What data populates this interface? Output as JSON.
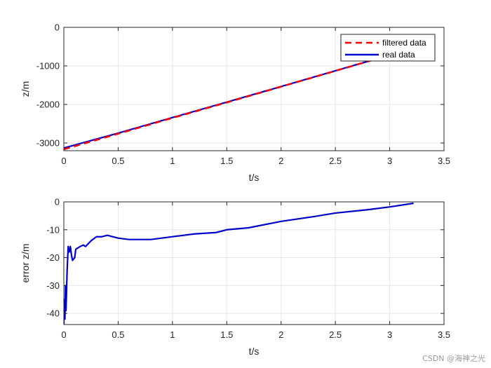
{
  "watermark": "CSDN @海神之光",
  "chart_data": [
    {
      "type": "line",
      "xlabel": "t/s",
      "ylabel": "z/m",
      "xlim": [
        0,
        3.5
      ],
      "ylim": [
        -3200,
        0
      ],
      "xticks": [
        "0",
        "0.5",
        "1",
        "1.5",
        "2",
        "2.5",
        "3",
        "3.5"
      ],
      "yticks": [
        "0",
        "-1000",
        "-2000",
        "-3000"
      ],
      "grid": true,
      "legend": "top-right",
      "series": [
        {
          "name": "filtered data",
          "color": "#ff0000",
          "style": "dashed",
          "x": [
            0,
            0.5,
            1.0,
            1.5,
            2.0,
            2.5,
            3.0,
            3.22
          ],
          "y": [
            -3165,
            -2760,
            -2350,
            -1950,
            -1540,
            -1130,
            -720,
            -540
          ]
        },
        {
          "name": "real data",
          "color": "#0000cc",
          "style": "solid",
          "x": [
            0,
            0.5,
            1.0,
            1.5,
            2.0,
            2.5,
            3.0,
            3.22
          ],
          "y": [
            -3130,
            -2745,
            -2340,
            -1940,
            -1535,
            -1127,
            -719,
            -540
          ]
        }
      ]
    },
    {
      "type": "line",
      "xlabel": "t/s",
      "ylabel": "error z/m",
      "xlim": [
        0,
        3.5
      ],
      "ylim": [
        -44,
        0
      ],
      "xticks": [
        "0",
        "0.5",
        "1",
        "1.5",
        "2",
        "2.5",
        "3",
        "3.5"
      ],
      "yticks": [
        "0",
        "-10",
        "-20",
        "-30",
        "-40"
      ],
      "grid": true,
      "series": [
        {
          "name": "",
          "color": "#0000cc",
          "style": "solid",
          "x": [
            0,
            0.005,
            0.01,
            0.015,
            0.02,
            0.03,
            0.04,
            0.05,
            0.06,
            0.07,
            0.08,
            0.09,
            0.1,
            0.11,
            0.13,
            0.15,
            0.18,
            0.2,
            0.25,
            0.3,
            0.35,
            0.4,
            0.5,
            0.6,
            0.8,
            1.0,
            1.2,
            1.4,
            1.5,
            1.7,
            2.0,
            2.3,
            2.5,
            2.8,
            3.0,
            3.22
          ],
          "y": [
            -44,
            -35,
            -42,
            -30,
            -39,
            -25,
            -16,
            -18,
            -16,
            -19,
            -21,
            -20.5,
            -20,
            -17,
            -16.5,
            -16,
            -15.5,
            -16,
            -14,
            -12.5,
            -12.5,
            -12,
            -13,
            -13.5,
            -13.5,
            -12.5,
            -11.5,
            -11,
            -10,
            -9.3,
            -7,
            -5.3,
            -4,
            -2.8,
            -1.8,
            -0.5
          ]
        }
      ]
    }
  ]
}
